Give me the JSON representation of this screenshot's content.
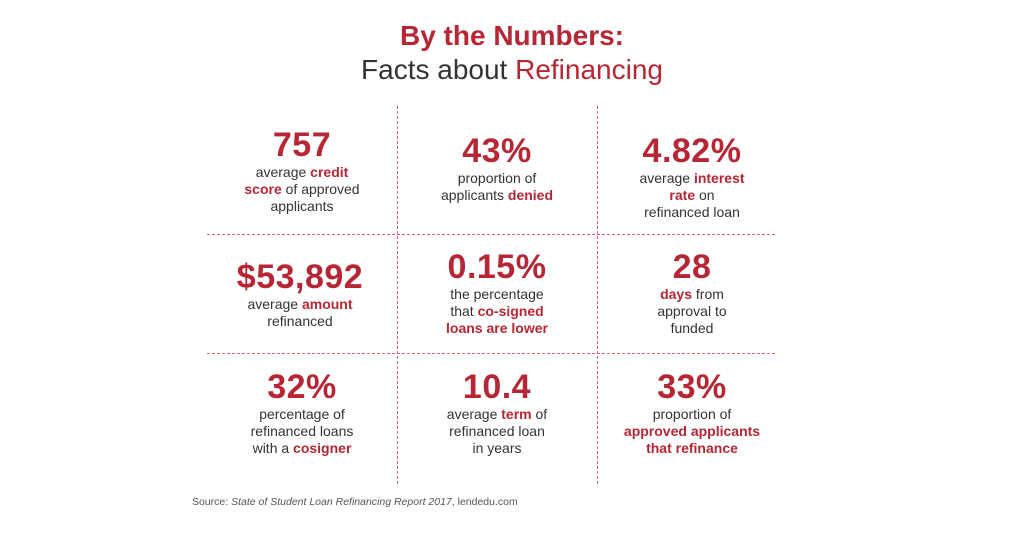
{
  "header": {
    "title": "By the Numbers:",
    "subtitle_prefix": "Facts about ",
    "subtitle_accent": "Refinancing"
  },
  "stats": {
    "credit": {
      "value": "757",
      "d1": "average ",
      "d2": "credit",
      "d3": "score",
      "d4": " of approved",
      "d5": "applicants"
    },
    "denied": {
      "value": "43%",
      "d1": "proportion of",
      "d2": "applicants ",
      "d3": "denied"
    },
    "rate": {
      "value": "4.82%",
      "d1": "average ",
      "d2": "interest",
      "d3": "rate",
      "d4": " on",
      "d5": "refinanced loan"
    },
    "amount": {
      "value": "$53,892",
      "d1": "average ",
      "d2": "amount",
      "d3": "refinanced"
    },
    "cosigned": {
      "value": "0.15%",
      "d1": "the percentage",
      "d2": "that ",
      "d3": "co-signed",
      "d4": "loans are lower"
    },
    "days": {
      "value": "28",
      "d1": "days",
      "d2": " from",
      "d3": "approval to",
      "d4": "funded"
    },
    "cosigner": {
      "value": "32%",
      "d1": "percentage of",
      "d2": "refinanced loans",
      "d3": "with a ",
      "d4": "cosigner"
    },
    "term": {
      "value": "10.4",
      "d1": "average ",
      "d2": "term",
      "d3": " of",
      "d4": "refinanced loan",
      "d5": "in years"
    },
    "approved": {
      "value": "33%",
      "d1": "proportion of",
      "d2": "approved applicants",
      "d3": "that refinance"
    }
  },
  "source": {
    "prefix": "Source: ",
    "report": "State of Student Loan Refinancing Report 2017",
    "suffix": ", lendedu.com"
  },
  "colors": {
    "accent": "#b72634",
    "text": "#333333",
    "divider": "#d9646d"
  }
}
